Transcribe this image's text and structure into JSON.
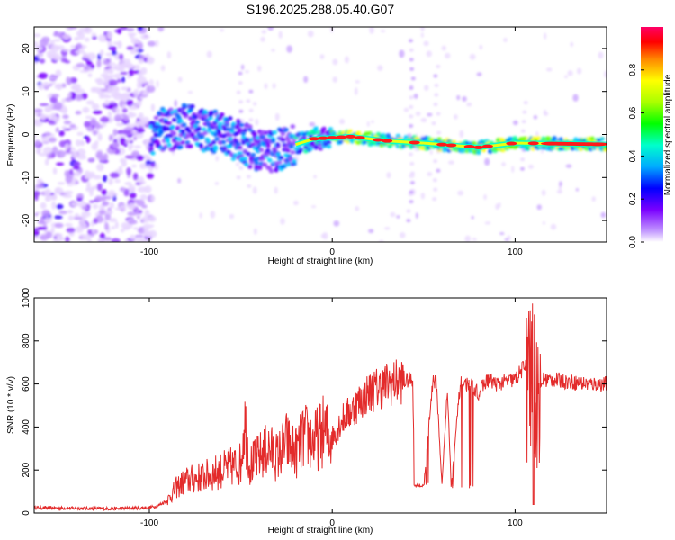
{
  "title": "S196.2025.288.05.40.G07",
  "colors": {
    "line": "#e32b2b",
    "spectrum_low": "#7a00ff",
    "spectrum_high": "#ff0000"
  },
  "chart_data": [
    {
      "type": "heatmap",
      "title": "S196.2025.288.05.40.G07",
      "xlabel": "Height of straight line (km)",
      "ylabel": "Frequency (Hz)",
      "xlim": [
        -163,
        150
      ],
      "ylim": [
        -25,
        25
      ],
      "xticks": [
        -100,
        0,
        100
      ],
      "xtick_labels": [
        "-100",
        "0",
        "100"
      ],
      "yticks": [
        -20,
        -10,
        0,
        10,
        20
      ],
      "ytick_labels": [
        "-20",
        "-10",
        "0",
        "10",
        "20"
      ],
      "colorbar": {
        "label": "Normalized spectral amplitude",
        "range": [
          0,
          1
        ],
        "ticks": [
          0.0,
          0.2,
          0.4,
          0.6,
          0.8
        ],
        "tick_labels": [
          "0.0",
          "0.2",
          "0.4",
          "0.6",
          "0.8"
        ],
        "colormap": "rainbow"
      },
      "description_points": {
        "ridge": [
          {
            "x": -98,
            "f": 0.5
          },
          {
            "x": -80,
            "f": 2
          },
          {
            "x": -60,
            "f": 0
          },
          {
            "x": -40,
            "f": -4
          },
          {
            "x": -25,
            "f": -3
          },
          {
            "x": -10,
            "f": -1
          },
          {
            "x": 10,
            "f": -0.5
          },
          {
            "x": 30,
            "f": -1.5
          },
          {
            "x": 50,
            "f": -2
          },
          {
            "x": 80,
            "f": -3
          },
          {
            "x": 100,
            "f": -2
          },
          {
            "x": 150,
            "f": -2.3
          }
        ]
      }
    },
    {
      "type": "line",
      "xlabel": "Height of straight line (km)",
      "ylabel": "SNR (10 * v/v)",
      "xlim": [
        -163,
        150
      ],
      "ylim": [
        0,
        1000
      ],
      "xticks": [
        -100,
        0,
        100
      ],
      "xtick_labels": [
        "-100",
        "0",
        "100"
      ],
      "yticks": [
        0,
        200,
        400,
        600,
        800,
        1000
      ],
      "ytick_labels": [
        "0",
        "200",
        "400",
        "600",
        "800",
        "1000"
      ],
      "series": [
        {
          "name": "SNR",
          "x": [
            -163,
            -140,
            -120,
            -100,
            -95,
            -90,
            -85,
            -80,
            -70,
            -60,
            -50,
            -48,
            -45,
            -40,
            -35,
            -30,
            -25,
            -20,
            -15,
            -10,
            -5,
            0,
            5,
            10,
            15,
            20,
            25,
            30,
            35,
            40,
            44,
            45,
            50,
            55,
            57,
            60,
            63,
            65,
            70,
            75,
            80,
            85,
            90,
            95,
            100,
            105,
            108,
            110,
            111,
            113,
            115,
            120,
            130,
            140,
            150
          ],
          "values": [
            25,
            22,
            20,
            25,
            35,
            60,
            120,
            150,
            170,
            200,
            230,
            440,
            220,
            260,
            300,
            260,
            330,
            280,
            360,
            330,
            380,
            350,
            430,
            470,
            520,
            560,
            580,
            600,
            610,
            615,
            620,
            130,
            125,
            620,
            600,
            130,
            590,
            125,
            600,
            600,
            560,
            620,
            600,
            610,
            620,
            680,
            800,
            40,
            980,
            500,
            620,
            620,
            610,
            600,
            600
          ]
        }
      ]
    }
  ]
}
